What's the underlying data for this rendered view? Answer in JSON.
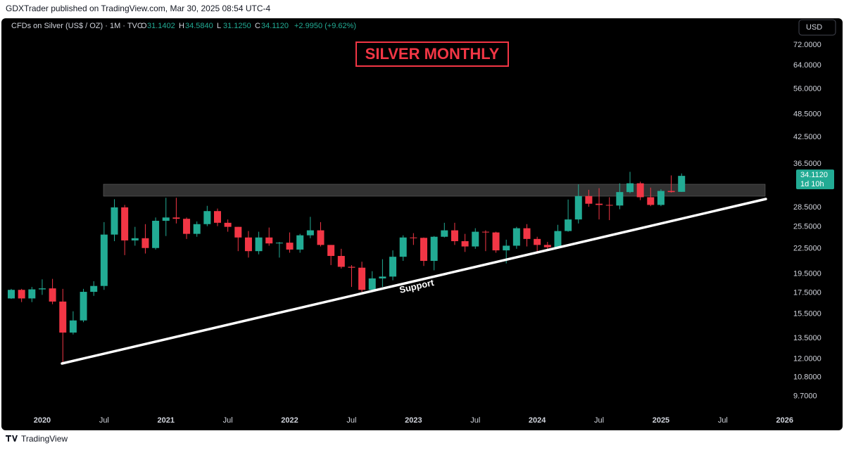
{
  "header": {
    "byline": "GDXTrader published on TradingView.com, Mar 30, 2025 08:54 UTC-4"
  },
  "footer": {
    "brand": "TradingView"
  },
  "chart_data": {
    "type": "candlestick",
    "symbol": "CFDs on Silver (US$ / OZ) · 1M · TVC",
    "ohlc_legend": [
      {
        "label": "O",
        "value": "31.1402"
      },
      {
        "label": "H",
        "value": "34.5840"
      },
      {
        "label": "L",
        "value": "31.1250"
      },
      {
        "label": "C",
        "value": "34.1120"
      }
    ],
    "change": "+2.9950 (+9.62%)",
    "title": "SILVER MONTHLY",
    "annotation": "Support",
    "currency": "USD",
    "price_tag": {
      "price": "34.1120",
      "countdown": "1d 10h"
    },
    "categories": [
      null,
      null,
      null,
      "2020",
      null,
      null,
      null,
      null,
      null,
      "Jul",
      null,
      null,
      null,
      null,
      null,
      "2021",
      null,
      null,
      null,
      null,
      null,
      "Jul",
      null,
      null,
      null,
      null,
      null,
      "2022",
      null,
      null,
      null,
      null,
      null,
      "Jul",
      null,
      null,
      null,
      null,
      null,
      "2023",
      null,
      null,
      null,
      null,
      null,
      "Jul",
      null,
      null,
      null,
      null,
      null,
      "2024",
      null,
      null,
      null,
      null,
      null,
      "Jul",
      null,
      null,
      null,
      null,
      null,
      "2025",
      null,
      null,
      null,
      null,
      null,
      "Jul",
      null,
      null,
      null,
      null,
      null,
      "2026"
    ],
    "open": [
      16.95,
      17.8,
      16.95,
      17.85,
      17.95,
      16.65,
      13.95,
      14.95,
      17.6,
      18.2,
      24.4,
      28.5,
      23.6,
      23.9,
      22.6,
      26.4,
      26.9,
      26.7,
      24.5,
      25.9,
      27.9,
      26.1,
      25.5,
      24.0,
      22.2,
      24.0,
      23.2,
      23.3,
      22.4,
      24.3,
      25.0,
      23.0,
      21.6,
      20.3,
      20.2,
      17.8,
      19.0,
      19.2,
      21.5,
      24.0,
      23.95,
      21.0,
      24.1,
      25.0,
      23.5,
      22.8,
      24.8,
      24.7,
      22.3,
      22.9,
      25.3,
      23.8,
      23.0,
      22.7,
      24.9,
      26.6,
      30.4,
      29.1,
      28.9,
      28.8,
      31.1,
      32.7,
      30.2,
      28.9,
      31.3,
      31.1402,
      null,
      null,
      null,
      null,
      null,
      null,
      null,
      null,
      null,
      null
    ],
    "high": [
      17.9,
      17.9,
      18.1,
      18.9,
      18.95,
      17.9,
      15.75,
      17.9,
      18.7,
      26.2,
      29.85,
      28.9,
      25.5,
      25.9,
      26.9,
      30.1,
      30.1,
      26.9,
      26.3,
      28.75,
      28.3,
      26.6,
      25.5,
      24.9,
      24.8,
      25.4,
      23.4,
      24.7,
      24.5,
      27.0,
      26.2,
      23.0,
      22.5,
      20.5,
      20.9,
      19.8,
      21.2,
      22.3,
      24.3,
      24.6,
      24.0,
      24.2,
      26.1,
      26.1,
      24.5,
      25.3,
      25.0,
      24.8,
      23.7,
      25.5,
      25.9,
      24.1,
      23.4,
      25.8,
      29.8,
      32.5,
      31.5,
      31.8,
      30.2,
      32.7,
      34.9,
      33.0,
      31.9,
      31.6,
      34.2,
      34.584,
      null,
      null,
      null,
      null,
      null,
      null,
      null,
      null,
      null,
      null
    ],
    "low": [
      16.9,
      16.6,
      16.6,
      17.3,
      16.4,
      11.65,
      13.8,
      14.8,
      17.2,
      17.8,
      23.5,
      21.7,
      22.9,
      21.9,
      22.4,
      24.2,
      26.0,
      23.8,
      24.1,
      25.6,
      25.6,
      24.8,
      22.2,
      21.4,
      21.8,
      22.9,
      21.4,
      22.0,
      22.0,
      23.9,
      22.8,
      20.5,
      20.1,
      18.1,
      17.6,
      17.6,
      18.1,
      18.8,
      21.0,
      23.0,
      20.4,
      19.9,
      24.0,
      23.0,
      22.1,
      22.5,
      22.2,
      22.0,
      20.7,
      22.5,
      22.8,
      22.0,
      22.3,
      22.5,
      24.8,
      26.0,
      28.6,
      26.6,
      26.5,
      28.2,
      30.9,
      29.7,
      28.7,
      28.7,
      31.0,
      31.125,
      null,
      null,
      null,
      null,
      null,
      null,
      null,
      null,
      null,
      null
    ],
    "close": [
      17.8,
      16.95,
      17.85,
      17.95,
      16.65,
      13.95,
      14.95,
      17.6,
      18.2,
      24.4,
      28.5,
      23.6,
      23.9,
      22.6,
      26.4,
      26.9,
      26.7,
      24.5,
      25.9,
      27.9,
      26.1,
      25.5,
      24.0,
      22.2,
      24.0,
      23.2,
      23.3,
      22.4,
      24.3,
      25.0,
      23.0,
      21.6,
      20.3,
      20.2,
      17.8,
      19.0,
      19.2,
      21.5,
      24.0,
      23.95,
      21.0,
      24.1,
      25.0,
      23.5,
      22.8,
      24.8,
      24.7,
      22.3,
      22.9,
      25.3,
      23.8,
      23.0,
      22.7,
      24.9,
      26.6,
      30.4,
      29.1,
      28.9,
      28.8,
      31.1,
      32.7,
      30.2,
      28.9,
      31.3,
      31.1,
      34.112,
      null,
      null,
      null,
      null,
      null,
      null,
      null,
      null,
      null,
      null
    ],
    "up_color": "#22ab94",
    "down_color": "#f23645",
    "log_scale": true,
    "ylim": [
      8.9,
      82.5
    ],
    "yticks": [
      {
        "value": 72,
        "label": "72.0000"
      },
      {
        "value": 64,
        "label": "64.0000"
      },
      {
        "value": 56,
        "label": "56.0000"
      },
      {
        "value": 48.5,
        "label": "48.5000"
      },
      {
        "value": 42.5,
        "label": "42.5000"
      },
      {
        "value": 36.5,
        "label": "36.5000"
      },
      {
        "value": 28.5,
        "label": "28.5000"
      },
      {
        "value": 25.5,
        "label": "25.5000"
      },
      {
        "value": 22.5,
        "label": "22.5000"
      },
      {
        "value": 19.5,
        "label": "19.5000"
      },
      {
        "value": 17.5,
        "label": "17.5000"
      },
      {
        "value": 15.5,
        "label": "15.5000"
      },
      {
        "value": 13.5,
        "label": "13.5000"
      },
      {
        "value": 12,
        "label": "12.0000"
      },
      {
        "value": 10.8,
        "label": "10.8000"
      },
      {
        "value": 9.7,
        "label": "9.7000"
      }
    ],
    "grid": false
  }
}
